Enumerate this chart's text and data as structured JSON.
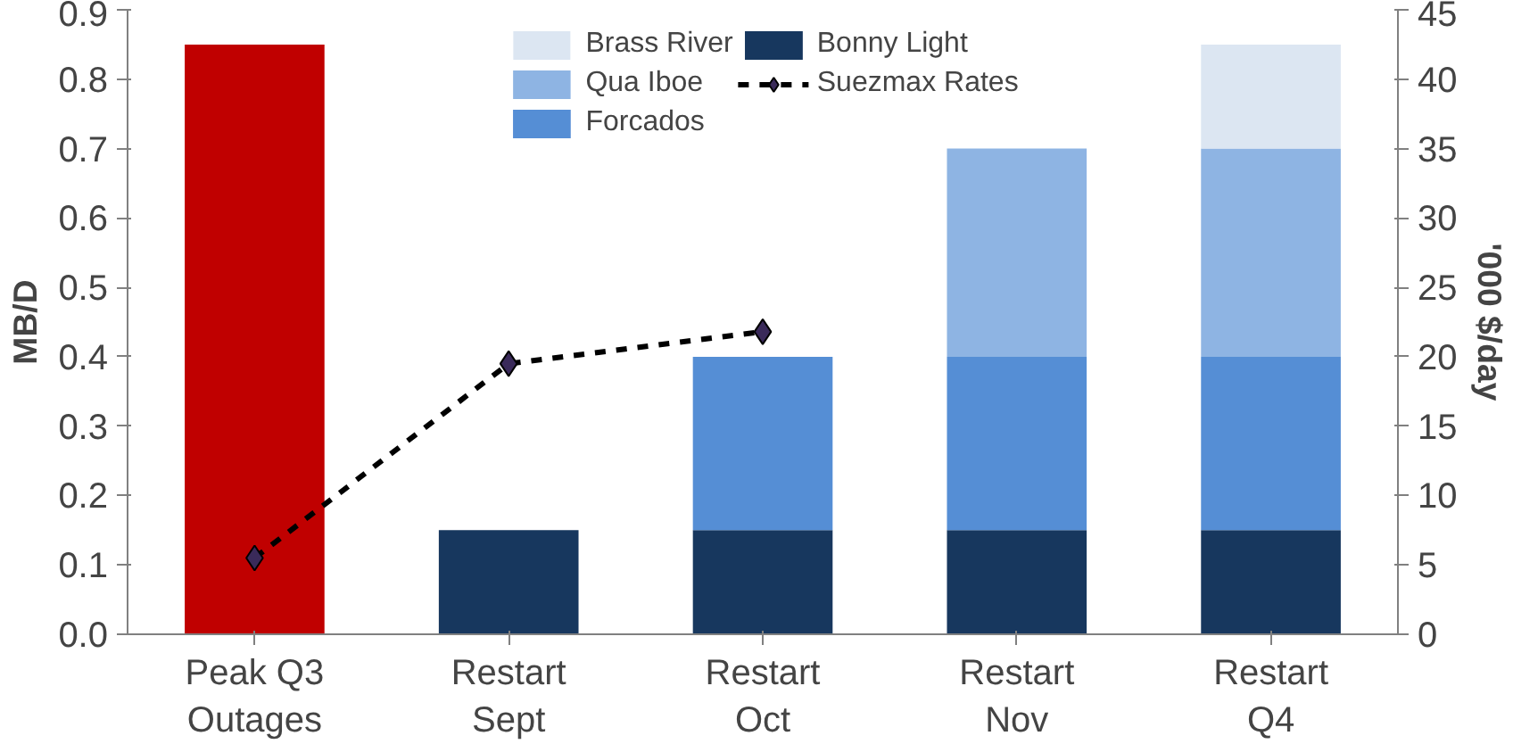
{
  "chart_data": {
    "type": "bar",
    "stacked": true,
    "categories": [
      "Peak Q3\nOutages",
      "Restart\nSept",
      "Restart\nOct",
      "Restart\nNov",
      "Restart\nQ4"
    ],
    "ylabel": "MB/D",
    "y2label": "'000 $/day",
    "ylim": [
      0,
      0.9
    ],
    "yticks": [
      {
        "value": 0,
        "label": "0.0"
      },
      0.1,
      0.2,
      0.3,
      0.4,
      0.5,
      0.6,
      0.7,
      0.8,
      0.9
    ],
    "y2lim": [
      0,
      45
    ],
    "y2ticks": [
      0,
      5,
      10,
      15,
      20,
      25,
      30,
      35,
      40,
      45
    ],
    "legend": "top",
    "grid": false,
    "series": [
      {
        "color": "#c00000",
        "values": [
          0.85,
          null,
          null,
          null,
          null
        ]
      },
      {
        "name": "Bonny Light",
        "color": "#17375e",
        "values": [
          null,
          0.15,
          0.15,
          0.15,
          0.15
        ]
      },
      {
        "name": "Forcados",
        "color": "#558ed5",
        "values": [
          null,
          null,
          0.25,
          0.25,
          0.25
        ]
      },
      {
        "name": "Qua Iboe",
        "color": "#8eb4e3",
        "values": [
          null,
          null,
          null,
          0.3,
          0.3
        ]
      },
      {
        "name": "Brass River",
        "color": "#dce6f2",
        "values": [
          null,
          null,
          null,
          null,
          0.15
        ]
      },
      {
        "name": "Suezmax Rates",
        "type": "line",
        "axis": "y2",
        "color": "#000000",
        "marker": "diamond",
        "line_style": "dashed",
        "values": [
          5.5,
          19.5,
          21.8,
          null,
          null
        ]
      }
    ]
  }
}
